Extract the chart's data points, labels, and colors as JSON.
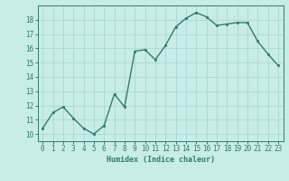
{
  "x": [
    0,
    1,
    2,
    3,
    4,
    5,
    6,
    7,
    8,
    9,
    10,
    11,
    12,
    13,
    14,
    15,
    16,
    17,
    18,
    19,
    20,
    21,
    22,
    23
  ],
  "y": [
    10.4,
    11.5,
    11.9,
    11.1,
    10.4,
    10.0,
    10.6,
    12.8,
    11.9,
    15.8,
    15.9,
    15.2,
    16.2,
    17.5,
    18.1,
    18.5,
    18.2,
    17.6,
    17.7,
    17.8,
    17.8,
    16.5,
    15.6,
    14.8
  ],
  "line_color": "#2e7d6e",
  "marker": "s",
  "marker_size": 2,
  "bg_color": "#c8ece8",
  "grid_color": "#a8d8d4",
  "xlabel": "Humidex (Indice chaleur)",
  "xlim": [
    -0.5,
    23.5
  ],
  "ylim": [
    9.5,
    19.0
  ],
  "yticks": [
    10,
    11,
    12,
    13,
    14,
    15,
    16,
    17,
    18
  ],
  "xticks": [
    0,
    1,
    2,
    3,
    4,
    5,
    6,
    7,
    8,
    9,
    10,
    11,
    12,
    13,
    14,
    15,
    16,
    17,
    18,
    19,
    20,
    21,
    22,
    23
  ],
  "tick_color": "#2e7d6e",
  "label_fontsize": 6,
  "tick_fontsize": 5.5,
  "line_width": 1.0
}
